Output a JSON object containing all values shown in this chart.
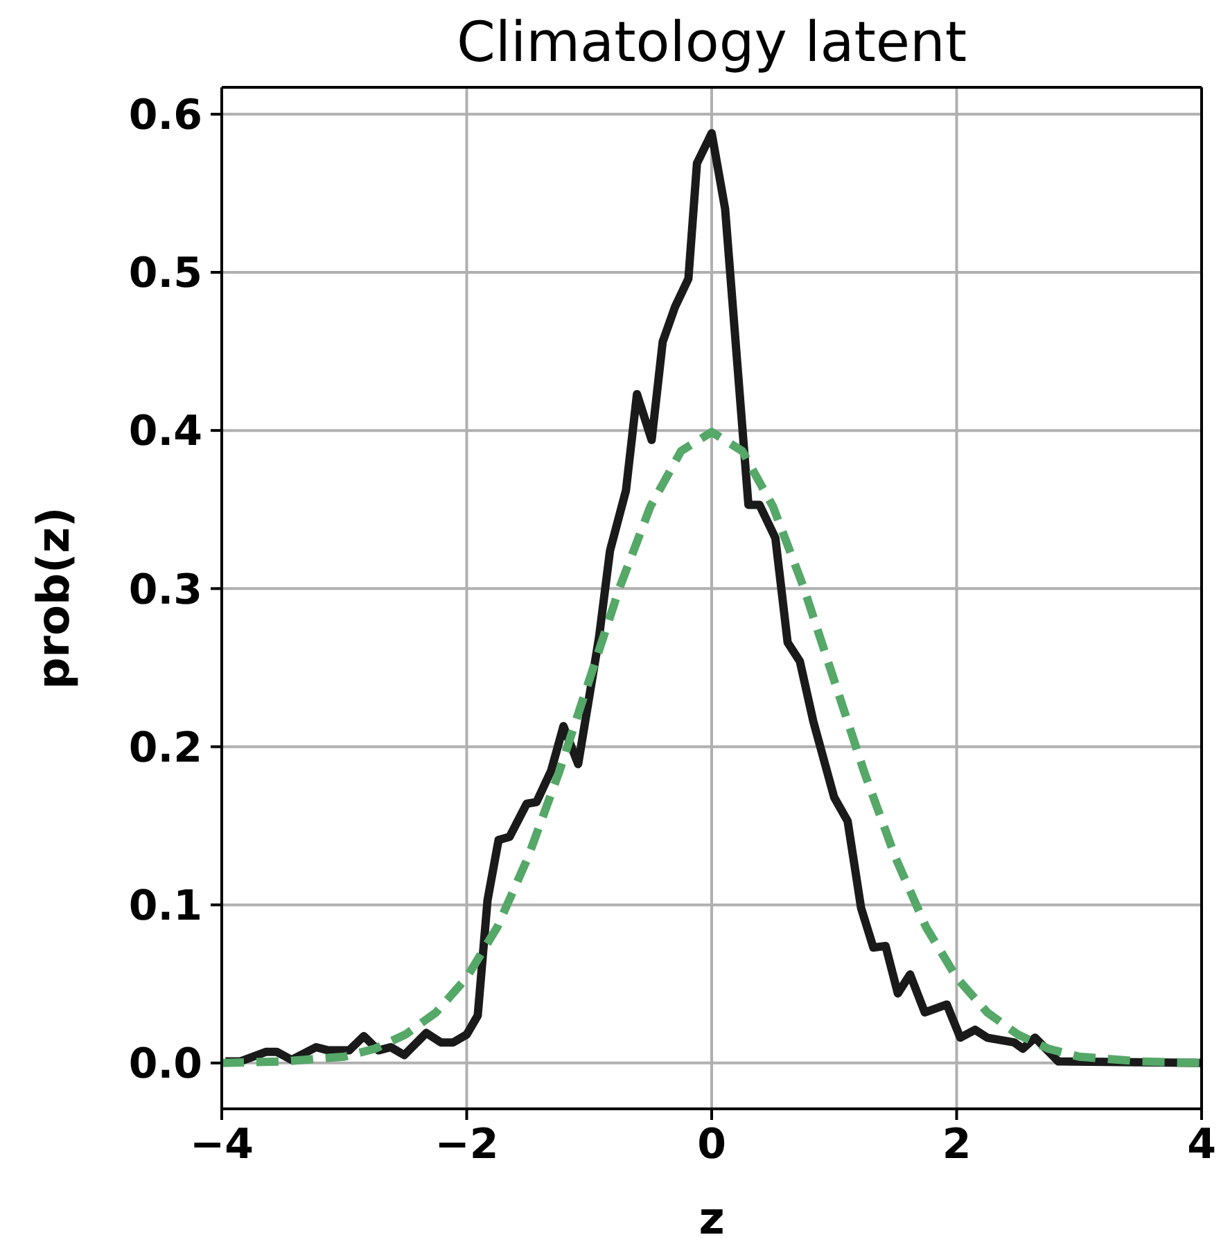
{
  "chart_data": {
    "type": "line",
    "title": "Climatology latent",
    "xlabel": "z",
    "ylabel": "prob(z)",
    "xlim": [
      -4,
      4
    ],
    "xticks": [
      {
        "value": -4,
        "label": "−4"
      },
      {
        "value": -2,
        "label": "−2"
      },
      0,
      2,
      4
    ],
    "ylim": [
      -0.029,
      0.617
    ],
    "yticks": [
      {
        "value": 0,
        "label": "0.0"
      },
      0.1,
      0.2,
      0.3,
      0.4,
      0.5,
      0.6
    ],
    "grid": true,
    "marker": "none",
    "series": [
      {
        "color": "#1a1a1a",
        "line_style": "solid",
        "x": [
          -3.97,
          -3.85,
          -3.64,
          -3.55,
          -3.43,
          -3.23,
          -3.13,
          -2.96,
          -2.84,
          -2.72,
          -2.62,
          -2.51,
          -2.33,
          -2.21,
          -2.11,
          -2.0,
          -1.91,
          -1.83,
          -1.74,
          -1.65,
          -1.51,
          -1.43,
          -1.31,
          -1.21,
          -1.09,
          -0.92,
          -0.83,
          -0.7,
          -0.61,
          -0.49,
          -0.4,
          -0.3,
          -0.19,
          -0.12,
          0.0,
          0.11,
          0.3,
          0.39,
          0.52,
          0.62,
          0.72,
          0.83,
          1.0,
          1.11,
          1.22,
          1.32,
          1.42,
          1.52,
          1.62,
          1.74,
          1.92,
          2.03,
          2.15,
          2.25,
          2.47,
          2.54,
          2.64,
          2.83,
          4.0
        ],
        "values": [
          0.001,
          0.001,
          0.007,
          0.007,
          0.002,
          0.01,
          0.008,
          0.008,
          0.017,
          0.008,
          0.01,
          0.005,
          0.019,
          0.013,
          0.013,
          0.018,
          0.03,
          0.103,
          0.141,
          0.143,
          0.164,
          0.165,
          0.185,
          0.213,
          0.189,
          0.269,
          0.324,
          0.362,
          0.423,
          0.394,
          0.456,
          0.478,
          0.496,
          0.569,
          0.588,
          0.54,
          0.353,
          0.353,
          0.332,
          0.266,
          0.254,
          0.216,
          0.168,
          0.153,
          0.098,
          0.073,
          0.074,
          0.044,
          0.056,
          0.032,
          0.037,
          0.016,
          0.021,
          0.016,
          0.013,
          0.009,
          0.016,
          0.001,
          0.0
        ]
      },
      {
        "color": "#55a868",
        "line_style": "dashed",
        "x": [
          -4,
          -3.5,
          -3,
          -2.75,
          -2.5,
          -2.25,
          -2,
          -1.75,
          -1.5,
          -1.25,
          -1,
          -0.75,
          -0.5,
          -0.25,
          0,
          0.25,
          0.5,
          0.75,
          1,
          1.25,
          1.5,
          1.75,
          2,
          2.25,
          2.5,
          2.75,
          3,
          3.5,
          4
        ],
        "values": [
          0.0,
          0.001,
          0.004,
          0.009,
          0.018,
          0.032,
          0.054,
          0.086,
          0.13,
          0.183,
          0.242,
          0.301,
          0.352,
          0.387,
          0.399,
          0.387,
          0.352,
          0.301,
          0.242,
          0.183,
          0.13,
          0.086,
          0.054,
          0.032,
          0.018,
          0.009,
          0.004,
          0.001,
          0.0
        ]
      }
    ]
  }
}
